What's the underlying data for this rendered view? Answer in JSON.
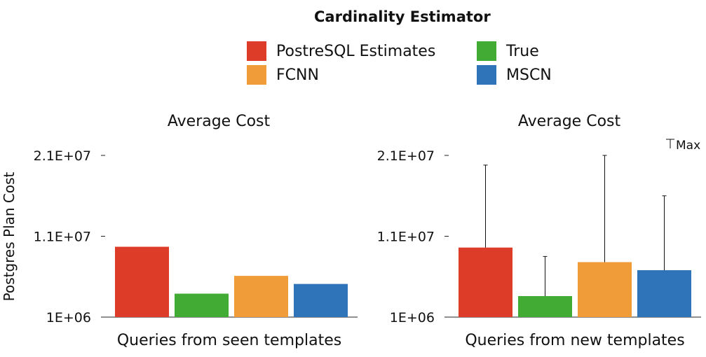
{
  "legend": {
    "title": "Cardinality Estimator",
    "items": [
      {
        "label": "PostreSQL Estimates",
        "color": "#dc3c28"
      },
      {
        "label": "True",
        "color": "#42ab33"
      },
      {
        "label": "FCNN",
        "color": "#f09c38"
      },
      {
        "label": "MSCN",
        "color": "#2f73b8"
      }
    ]
  },
  "ylabel": "Postgres Plan Cost",
  "tmax_label": "Max",
  "chart_data": [
    {
      "type": "bar",
      "title": "Average Cost",
      "xlabel": "Queries from seen templates",
      "ylabel": "Postgres Plan Cost",
      "yticks": [
        "2.1E+07",
        "1.1E+07",
        "1E+06"
      ],
      "ylim": [
        1000000,
        21000000
      ],
      "series": [
        {
          "name": "PostreSQL Estimates",
          "values": [
            9700000
          ]
        },
        {
          "name": "True",
          "values": [
            3900000
          ]
        },
        {
          "name": "FCNN",
          "values": [
            6100000
          ]
        },
        {
          "name": "MSCN",
          "values": [
            5100000
          ]
        }
      ],
      "error_max": null
    },
    {
      "type": "bar",
      "title": "Average Cost",
      "xlabel": "Queries from new templates",
      "ylabel": "Postgres Plan Cost",
      "yticks": [
        "2.1E+07",
        "1.1E+07",
        "1E+06"
      ],
      "ylim": [
        1000000,
        21000000
      ],
      "series": [
        {
          "name": "PostreSQL Estimates",
          "values": [
            9600000
          ]
        },
        {
          "name": "True",
          "values": [
            3600000
          ]
        },
        {
          "name": "FCNN",
          "values": [
            7800000
          ]
        },
        {
          "name": "MSCN",
          "values": [
            6800000
          ]
        }
      ],
      "error_max": [
        19800000,
        8500000,
        21000000,
        16000000
      ]
    }
  ]
}
